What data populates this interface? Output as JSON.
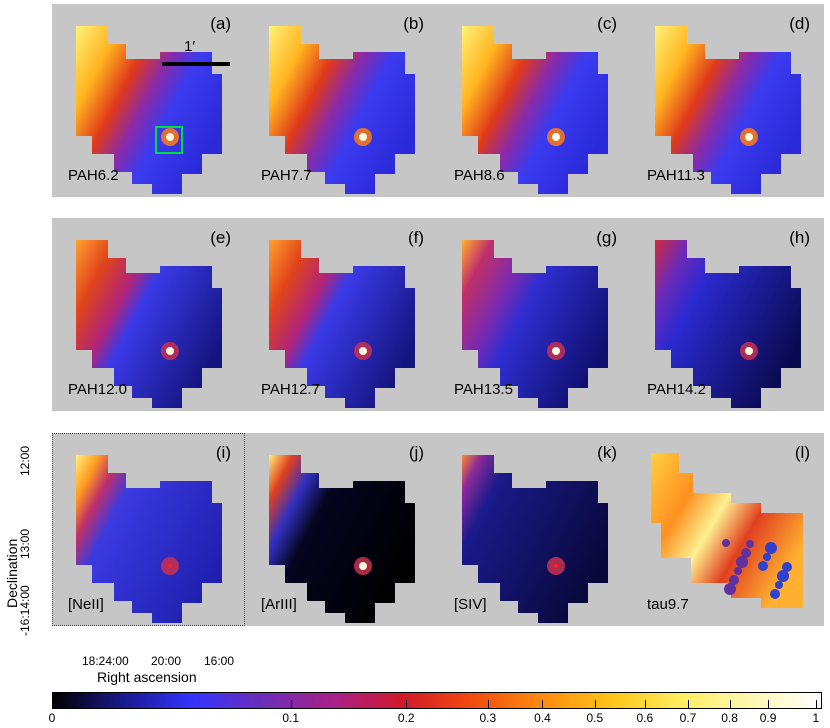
{
  "panels": [
    {
      "letter": "(a)",
      "name": "PAH6.2",
      "style": "broad"
    },
    {
      "letter": "(b)",
      "name": "PAH7.7",
      "style": "broad"
    },
    {
      "letter": "(c)",
      "name": "PAH8.6",
      "style": "broad"
    },
    {
      "letter": "(d)",
      "name": "PAH11.3",
      "style": "broad"
    },
    {
      "letter": "(e)",
      "name": "PAH12.0",
      "style": "mid"
    },
    {
      "letter": "(f)",
      "name": "PAH12.7",
      "style": "mid"
    },
    {
      "letter": "(g)",
      "name": "PAH13.5",
      "style": "noisy"
    },
    {
      "letter": "(h)",
      "name": "PAH14.2",
      "style": "low"
    },
    {
      "letter": "(i)",
      "name": "[NeII]",
      "style": "corner"
    },
    {
      "letter": "(j)",
      "name": "[ArIII]",
      "style": "dark"
    },
    {
      "letter": "(k)",
      "name": "[SIV]",
      "style": "darkblue"
    },
    {
      "letter": "(l)",
      "name": "tau9.7",
      "style": "tau"
    }
  ],
  "scale_bar_label": "1′",
  "axes": {
    "ylabel": "Declination",
    "xlabel": "Right ascension",
    "yticks": [
      "12:00",
      "13:00",
      "-16:14:00"
    ],
    "xticks": [
      "18:24:00",
      "20:00",
      "16:00"
    ]
  },
  "colorbar": {
    "ticks": [
      "0",
      "0.1",
      "0.2",
      "0.3",
      "0.4",
      "0.5",
      "0.6",
      "0.7",
      "0.8",
      "0.9",
      "1"
    ],
    "values": [
      0,
      0.1,
      0.2,
      0.3,
      0.4,
      0.5,
      0.6,
      0.7,
      0.8,
      0.9,
      1
    ],
    "colors": [
      "#000000",
      "#1a1a8c",
      "#3333ff",
      "#6b2fb8",
      "#a8208a",
      "#d01a2a",
      "#f24a10",
      "#ff8a10",
      "#ffc418",
      "#ffee60",
      "#fff8b0",
      "#ffffff"
    ]
  }
}
